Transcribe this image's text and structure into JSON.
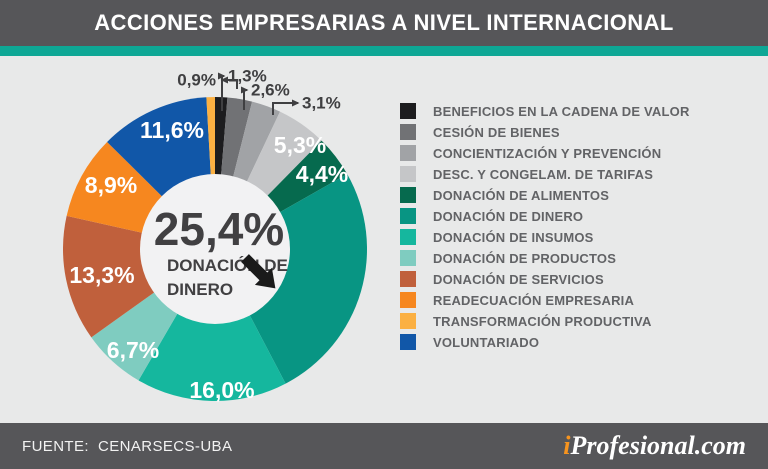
{
  "header": {
    "title": "ACCIONES EMPRESARIAS A NIVEL INTERNACIONAL"
  },
  "footer": {
    "source_label": "FUENTE:",
    "source_value": "CENARSECS-UBA",
    "brand_prefix": "i",
    "brand_rest": "Profesional.com"
  },
  "colors": {
    "header_bg": "#565659",
    "accent_stripe": "#0ea795",
    "canvas_bg": "#e8e9e9",
    "hole_fill": "#f2f2f3",
    "dark_label": "#3f3f41",
    "brand_accent": "#f7941e"
  },
  "chart_data": {
    "type": "pie",
    "title": "ACCIONES EMPRESARIAS A NIVEL INTERNACIONAL",
    "source": "FUENTE: CENARSECS-UBA",
    "legend_position": "right",
    "direction": "clockwise",
    "start_angle_deg": 0,
    "inner_radius_ratio": 0.49,
    "center": {
      "value": "25,4%",
      "line1": "DONACIÓN DE",
      "line2": "DINERO"
    },
    "slices": [
      {
        "label": "BENEFICIOS EN LA CADENA DE VALOR",
        "value": 1.3,
        "percent_label": "1,3%",
        "color": "#1c1c1e"
      },
      {
        "label": "CESIÓN DE BIENES",
        "value": 2.6,
        "percent_label": "2,6%",
        "color": "#717275"
      },
      {
        "label": "CONCIENTIZACIÓN Y PREVENCIÓN",
        "value": 3.1,
        "percent_label": "3,1%",
        "color": "#a1a3a6"
      },
      {
        "label": "DESC. Y CONGELAM. DE TARIFAS",
        "value": 5.3,
        "percent_label": "5,3%",
        "color": "#c5c6c8"
      },
      {
        "label": "DONACIÓN DE ALIMENTOS",
        "value": 4.4,
        "percent_label": "4,4%",
        "color": "#066a4e"
      },
      {
        "label": "DONACIÓN DE DINERO",
        "value": 25.4,
        "percent_label": "25,4%",
        "color": "#089583"
      },
      {
        "label": "DONACIÓN DE INSUMOS",
        "value": 16.0,
        "percent_label": "16,0%",
        "color": "#15b79e"
      },
      {
        "label": "DONACIÓN DE PRODUCTOS",
        "value": 6.7,
        "percent_label": "6,7%",
        "color": "#7fccc0"
      },
      {
        "label": "DONACIÓN DE SERVICIOS",
        "value": 13.3,
        "percent_label": "13,3%",
        "color": "#c0603c"
      },
      {
        "label": "READECUACIÓN EMPRESARIA",
        "value": 8.9,
        "percent_label": "8,9%",
        "color": "#f6871f"
      },
      {
        "label": "TRANSFORMACIÓN PRODUCTIVA",
        "value": 0.9,
        "percent_label": "0,9%",
        "color": "#fbb042"
      },
      {
        "label": "VOLUNTARIADO",
        "value": 11.6,
        "percent_label": "11,6%",
        "color": "#1157a8"
      }
    ],
    "draw_order": [
      0,
      1,
      2,
      3,
      4,
      5,
      6,
      7,
      8,
      9,
      11,
      10
    ]
  }
}
